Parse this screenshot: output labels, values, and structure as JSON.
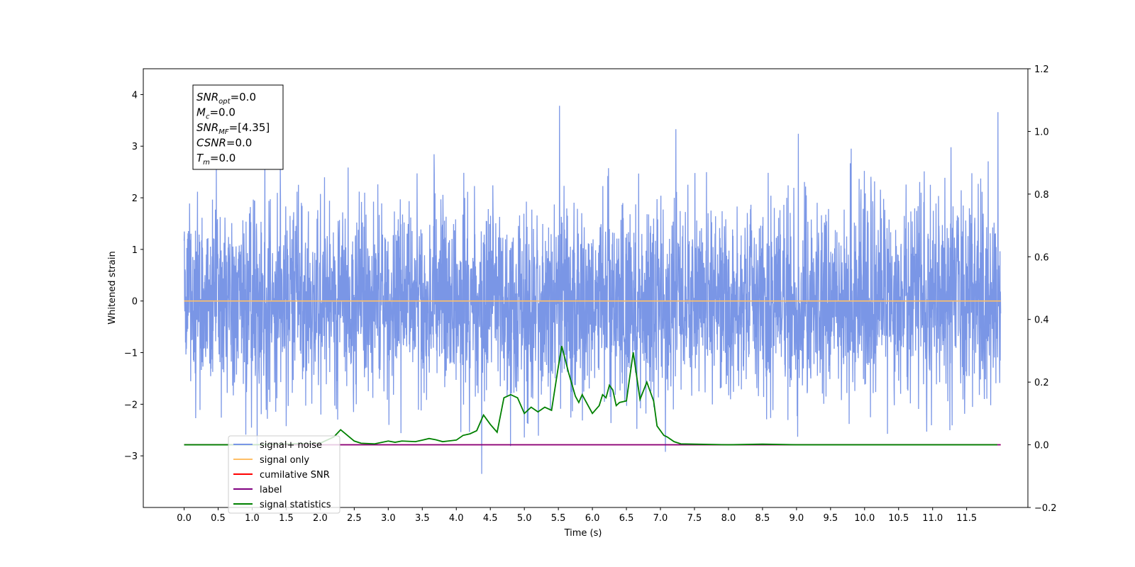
{
  "chart_data": {
    "type": "line",
    "xlabel": "Time (s)",
    "ylabel": "Whitened strain",
    "xlim": [
      -0.6,
      12.4
    ],
    "ylim": [
      -4.0,
      4.5
    ],
    "y2lim": [
      -0.2,
      1.2
    ],
    "x_ticks": [
      "0.0",
      "0.5",
      "1.0",
      "1.5",
      "2.0",
      "2.5",
      "3.0",
      "3.5",
      "4.0",
      "4.5",
      "5.0",
      "5.5",
      "6.0",
      "6.5",
      "7.0",
      "7.5",
      "8.0",
      "8.5",
      "9.0",
      "9.5",
      "10.0",
      "10.5",
      "11.0",
      "11.5"
    ],
    "y_ticks": [
      "4",
      "3",
      "2",
      "1",
      "0",
      "−1",
      "−2",
      "−3"
    ],
    "y2_ticks": [
      "1.2",
      "1.0",
      "0.8",
      "0.6",
      "0.4",
      "0.2",
      "0.0",
      "−0.2"
    ],
    "legend_position": "lower-left",
    "info_box": [
      {
        "base": "SNR",
        "sub": "opt",
        "value": "=0.0"
      },
      {
        "base": "M",
        "sub": "c",
        "value": "=0.0"
      },
      {
        "base": "SNR",
        "sub": "MF",
        "value": "=[4.35]"
      },
      {
        "base": "CSNR",
        "sub": "",
        "value": "=0.0"
      },
      {
        "base": "T",
        "sub": "m",
        "value": "=0.0"
      }
    ],
    "series": [
      {
        "name": "signal+ noise",
        "color": "#7a96e6",
        "axis": "left",
        "kind": "noise",
        "x_range": [
          0.0,
          12.0
        ],
        "envelope": [
          -3.35,
          4.12
        ]
      },
      {
        "name": "signal only",
        "color": "#ffbf66",
        "axis": "left",
        "kind": "constant",
        "x": [
          0.0,
          12.0
        ],
        "y": [
          0.0,
          0.0
        ]
      },
      {
        "name": "cumilative SNR",
        "color": "#ff0000",
        "axis": "right",
        "kind": "constant",
        "x": [
          0.0,
          12.0
        ],
        "y": [
          0.0,
          0.0
        ]
      },
      {
        "name": "label",
        "color": "#800080",
        "axis": "right",
        "kind": "constant",
        "x": [
          0.0,
          12.0
        ],
        "y": [
          0.0,
          0.0
        ]
      },
      {
        "name": "signal statistics",
        "color": "#008000",
        "axis": "right",
        "kind": "line",
        "x": [
          0.0,
          1.0,
          2.0,
          2.2,
          2.3,
          2.4,
          2.5,
          2.6,
          2.8,
          3.0,
          3.1,
          3.2,
          3.4,
          3.5,
          3.6,
          3.7,
          3.8,
          4.0,
          4.1,
          4.2,
          4.3,
          4.4,
          4.5,
          4.6,
          4.7,
          4.8,
          4.9,
          5.0,
          5.1,
          5.2,
          5.3,
          5.4,
          5.5,
          5.55,
          5.65,
          5.75,
          5.8,
          5.85,
          5.9,
          6.0,
          6.1,
          6.15,
          6.2,
          6.25,
          6.3,
          6.35,
          6.4,
          6.5,
          6.6,
          6.7,
          6.8,
          6.9,
          6.95,
          7.05,
          7.1,
          7.2,
          7.3,
          7.5,
          8.0,
          8.5,
          9.0,
          10.0,
          11.0,
          11.95
        ],
        "y": [
          0.0,
          0.0,
          0.005,
          0.025,
          0.048,
          0.03,
          0.012,
          0.005,
          0.003,
          0.012,
          0.008,
          0.012,
          0.01,
          0.015,
          0.02,
          0.016,
          0.01,
          0.015,
          0.03,
          0.035,
          0.045,
          0.095,
          0.065,
          0.04,
          0.15,
          0.16,
          0.15,
          0.1,
          0.12,
          0.105,
          0.12,
          0.11,
          0.25,
          0.315,
          0.23,
          0.155,
          0.135,
          0.16,
          0.14,
          0.1,
          0.125,
          0.16,
          0.15,
          0.19,
          0.175,
          0.125,
          0.135,
          0.14,
          0.295,
          0.145,
          0.2,
          0.14,
          0.06,
          0.03,
          0.025,
          0.01,
          0.003,
          0.002,
          0.0,
          0.002,
          0.0,
          0.0,
          0.0,
          0.0
        ]
      }
    ]
  }
}
